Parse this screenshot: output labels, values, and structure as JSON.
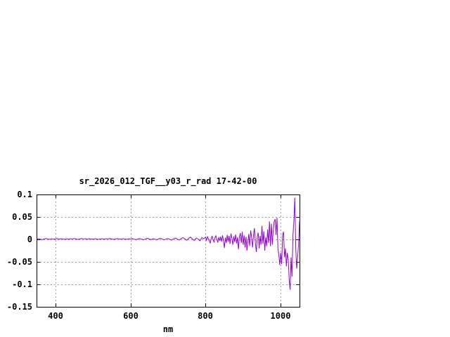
{
  "page": {
    "background": "#ffffff"
  },
  "chart_data": {
    "type": "line",
    "title": "sr_2026_012_TGF__y03_r_rad 17-42-00",
    "xlabel": "nm",
    "ylabel": "",
    "xlim": [
      350,
      1050
    ],
    "ylim": [
      -0.15,
      0.1
    ],
    "xticks": [
      400,
      600,
      800,
      1000
    ],
    "yticks": [
      0.1,
      0.05,
      0,
      -0.05,
      -0.1,
      -0.15
    ],
    "xtick_labels": [
      "400",
      "600",
      "800",
      "1000"
    ],
    "ytick_labels": [
      "0.1",
      "0.05",
      "0",
      "-0.05",
      "-0.1",
      "-0.15"
    ],
    "grid": true,
    "legend": "none",
    "line_color": "#9400D3",
    "grid_color": "#9b9b9b",
    "border_color": "#000000",
    "series": [
      {
        "name": "sr_2026_012_TGF__y03_r_rad",
        "points": [
          [
            350,
            0.0005
          ],
          [
            355,
            0.0015
          ],
          [
            360,
            0.0005
          ],
          [
            365,
            -0.0005
          ],
          [
            370,
            0.001
          ],
          [
            375,
            0.002
          ],
          [
            380,
            0.001
          ],
          [
            385,
            0
          ],
          [
            390,
            0.0015
          ],
          [
            395,
            0.0005
          ],
          [
            400,
            0.001
          ],
          [
            405,
            0.002
          ],
          [
            410,
            0.0005
          ],
          [
            415,
            0.0015
          ],
          [
            420,
            0.001
          ],
          [
            425,
            0
          ],
          [
            430,
            0.0015
          ],
          [
            435,
            0.0005
          ],
          [
            440,
            0.0015
          ],
          [
            445,
            0.001
          ],
          [
            450,
            0.002
          ],
          [
            455,
            0.001
          ],
          [
            460,
            0
          ],
          [
            465,
            0.001
          ],
          [
            470,
            0.002
          ],
          [
            475,
            0.001
          ],
          [
            480,
            0.0015
          ],
          [
            485,
            0.0005
          ],
          [
            490,
            0.0015
          ],
          [
            495,
            0.001
          ],
          [
            500,
            0.0005
          ],
          [
            505,
            0.0015
          ],
          [
            510,
            0.001
          ],
          [
            515,
            0
          ],
          [
            520,
            0.001
          ],
          [
            525,
            0.0015
          ],
          [
            530,
            0.0005
          ],
          [
            535,
            0.0015
          ],
          [
            540,
            0.001
          ],
          [
            545,
            0.002
          ],
          [
            550,
            0.001
          ],
          [
            555,
            0
          ],
          [
            560,
            0.001
          ],
          [
            565,
            0.002
          ],
          [
            570,
            0.001
          ],
          [
            575,
            0.0005
          ],
          [
            580,
            0.0015
          ],
          [
            585,
            0.001
          ],
          [
            590,
            0
          ],
          [
            595,
            0.0015
          ],
          [
            600,
            0.001
          ],
          [
            605,
            0.002
          ],
          [
            610,
            0.0005
          ],
          [
            615,
            -0.0005
          ],
          [
            620,
            0.001
          ],
          [
            625,
            0.002
          ],
          [
            630,
            0.0005
          ],
          [
            635,
            -0.001
          ],
          [
            640,
            0.001
          ],
          [
            645,
            0.0025
          ],
          [
            650,
            0.001
          ],
          [
            655,
            -0.0005
          ],
          [
            660,
            0.0015
          ],
          [
            665,
            0.0005
          ],
          [
            670,
            -0.001
          ],
          [
            675,
            0.0015
          ],
          [
            680,
            0.0025
          ],
          [
            685,
            0.0005
          ],
          [
            690,
            -0.001
          ],
          [
            695,
            0.001
          ],
          [
            700,
            0.002
          ],
          [
            705,
            0
          ],
          [
            710,
            -0.0015
          ],
          [
            715,
            0.0015
          ],
          [
            720,
            0.003
          ],
          [
            725,
            0.0005
          ],
          [
            730,
            -0.0015
          ],
          [
            735,
            0.002
          ],
          [
            740,
            0.004
          ],
          [
            745,
            0.001
          ],
          [
            750,
            -0.002
          ],
          [
            755,
            0.0025
          ],
          [
            760,
            0.005
          ],
          [
            765,
            0.001
          ],
          [
            770,
            -0.0025
          ],
          [
            775,
            0.003
          ],
          [
            780,
            0.001
          ],
          [
            785,
            -0.003
          ],
          [
            790,
            0.004
          ],
          [
            795,
            0.0015
          ],
          [
            800,
            0.005
          ],
          [
            802.5,
            -0.002
          ],
          [
            805,
            0.006
          ],
          [
            807.5,
            0.001
          ],
          [
            810,
            -0.004
          ],
          [
            812.5,
            -0.008
          ],
          [
            815,
            0.003
          ],
          [
            817.5,
            0.007
          ],
          [
            820,
            -0.001
          ],
          [
            822.5,
            -0.006
          ],
          [
            825,
            0.004
          ],
          [
            827.5,
            0.008
          ],
          [
            830,
            0
          ],
          [
            832.5,
            -0.007
          ],
          [
            835,
            0.005
          ],
          [
            837.5,
            -0.003
          ],
          [
            840,
            0.006
          ],
          [
            842.5,
            -0.005
          ],
          [
            845,
            0.009
          ],
          [
            847.5,
            -0.002
          ],
          [
            850,
            -0.019
          ],
          [
            852.5,
            0.004
          ],
          [
            855,
            -0.008
          ],
          [
            857.5,
            0.01
          ],
          [
            860,
            -0.005
          ],
          [
            862.5,
            0.008
          ],
          [
            865,
            -0.01
          ],
          [
            867.5,
            0.013
          ],
          [
            870,
            0.003
          ],
          [
            872.5,
            -0.012
          ],
          [
            875,
            0.007
          ],
          [
            877.5,
            -0.006
          ],
          [
            880,
            0.011
          ],
          [
            882.5,
            -0.009
          ],
          [
            885,
            0.005
          ],
          [
            887.5,
            -0.022
          ],
          [
            890,
            0.006
          ],
          [
            892.5,
            0.014
          ],
          [
            895,
            -0.008
          ],
          [
            897.5,
            0.017
          ],
          [
            900,
            -0.012
          ],
          [
            902.5,
            0.009
          ],
          [
            905,
            -0.018
          ],
          [
            907.5,
            0.006
          ],
          [
            910,
            -0.025
          ],
          [
            912.5,
            -0.005
          ],
          [
            915,
            0.012
          ],
          [
            917.5,
            -0.015
          ],
          [
            920,
            0.02
          ],
          [
            922.5,
            0.004
          ],
          [
            925,
            -0.018
          ],
          [
            927.5,
            0.01
          ],
          [
            930,
            0.025
          ],
          [
            932.5,
            -0.008
          ],
          [
            935,
            -0.028
          ],
          [
            937.5,
            0.005
          ],
          [
            940,
            0.015
          ],
          [
            942.5,
            -0.02
          ],
          [
            945,
            0.008
          ],
          [
            947.5,
            -0.012
          ],
          [
            950,
            0.03
          ],
          [
            952.5,
            -0.01
          ],
          [
            955,
            0.018
          ],
          [
            957.5,
            -0.025
          ],
          [
            960,
            0.005
          ],
          [
            962.5,
            -0.015
          ],
          [
            965,
            0.022
          ],
          [
            967.5,
            -0.008
          ],
          [
            970,
            0.04
          ],
          [
            972.5,
            -0.015
          ],
          [
            975,
            0.035
          ],
          [
            977.5,
            -0.012
          ],
          [
            980,
            0.02
          ],
          [
            982.5,
            0.04
          ],
          [
            985,
            0.045
          ],
          [
            987.5,
            0.01
          ],
          [
            990,
            0.048
          ],
          [
            992.5,
            -0.02
          ],
          [
            995,
            -0.035
          ],
          [
            997.5,
            -0.057
          ],
          [
            1000,
            -0.03
          ],
          [
            1002.5,
            -0.055
          ],
          [
            1005,
            0.01
          ],
          [
            1007.5,
            0.017
          ],
          [
            1010,
            -0.04
          ],
          [
            1012.5,
            -0.02
          ],
          [
            1015,
            -0.06
          ],
          [
            1017.5,
            -0.03
          ],
          [
            1020,
            -0.045
          ],
          [
            1022.5,
            -0.09
          ],
          [
            1025,
            -0.112
          ],
          [
            1027.5,
            -0.04
          ],
          [
            1030,
            -0.083
          ],
          [
            1032.5,
            0.01
          ],
          [
            1035,
            0.04
          ],
          [
            1037.5,
            0.093
          ],
          [
            1040,
            -0.02
          ],
          [
            1042.5,
            -0.065
          ],
          [
            1045,
            -0.04
          ],
          [
            1047.5,
            -0.01
          ],
          [
            1050,
            0.041
          ]
        ]
      }
    ]
  }
}
